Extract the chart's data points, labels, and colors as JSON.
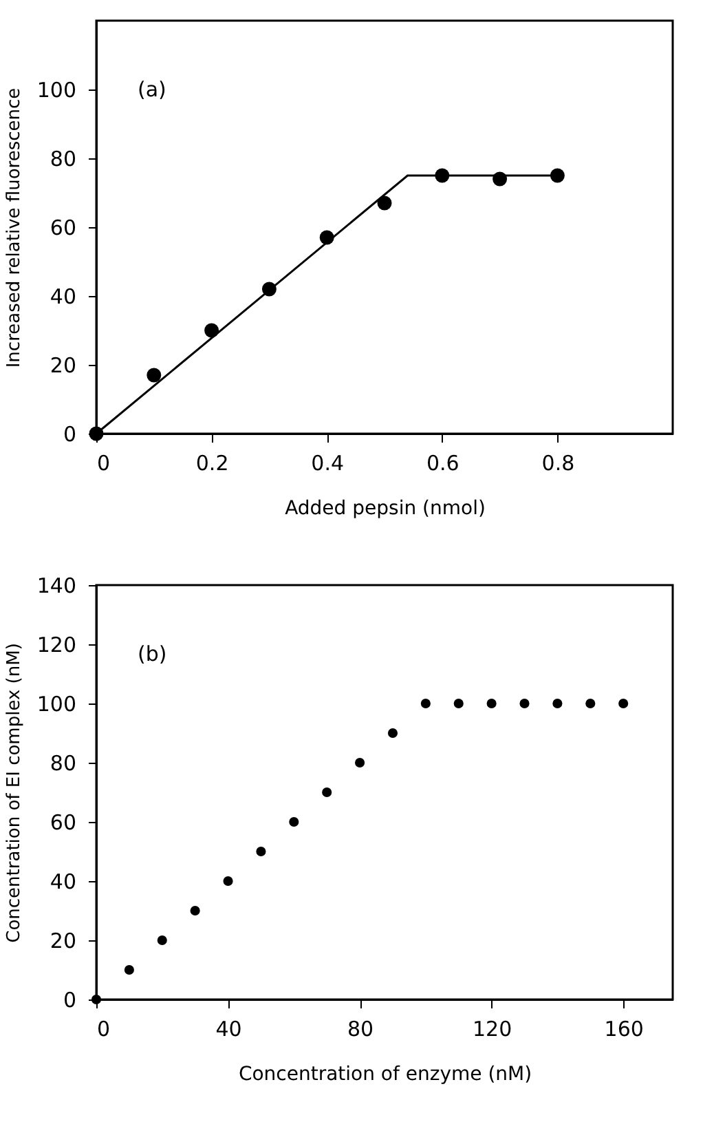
{
  "chart_data": [
    {
      "type": "scatter",
      "xlabel": "Added pepsin (nmol)",
      "ylabel": "Increased relative fluorescence",
      "annotations": [
        "(a)"
      ],
      "xlim": [
        0,
        1.0
      ],
      "xticks": [
        0,
        0.2,
        0.4,
        0.6,
        0.8
      ],
      "ylim": [
        0,
        120
      ],
      "yticks": [
        0,
        20,
        40,
        60,
        80,
        100
      ],
      "grid": false,
      "series": [
        {
          "color": "#000000",
          "marker": "circle",
          "x": [
            0,
            0.1,
            0.2,
            0.3,
            0.4,
            0.5,
            0.6,
            0.7,
            0.8
          ],
          "values": [
            0,
            17,
            30,
            42,
            57,
            67,
            75,
            74,
            75
          ]
        },
        {
          "type": "line",
          "color": "#000000",
          "marker": "none",
          "line_style": "solid",
          "x": [
            0,
            0.54,
            0.8
          ],
          "values": [
            0,
            75,
            75
          ]
        }
      ]
    },
    {
      "type": "scatter",
      "xlabel": "Concentration of enzyme (nM)",
      "ylabel": "Concentration of EI complex (nM)",
      "annotations": [
        "(b)"
      ],
      "xlim": [
        0,
        175
      ],
      "xticks": [
        0,
        40,
        80,
        120,
        160
      ],
      "ylim": [
        0,
        140
      ],
      "yticks": [
        0,
        20,
        40,
        60,
        80,
        100,
        120,
        140
      ],
      "grid": false,
      "series": [
        {
          "color": "#000000",
          "marker": "circle",
          "x": [
            0,
            10,
            20,
            30,
            40,
            50,
            60,
            70,
            80,
            90,
            100,
            110,
            120,
            130,
            140,
            150,
            160
          ],
          "values": [
            0,
            10,
            20,
            30,
            40,
            50,
            60,
            70,
            80,
            90,
            100,
            100,
            100,
            100,
            100,
            100,
            100
          ]
        }
      ]
    }
  ]
}
